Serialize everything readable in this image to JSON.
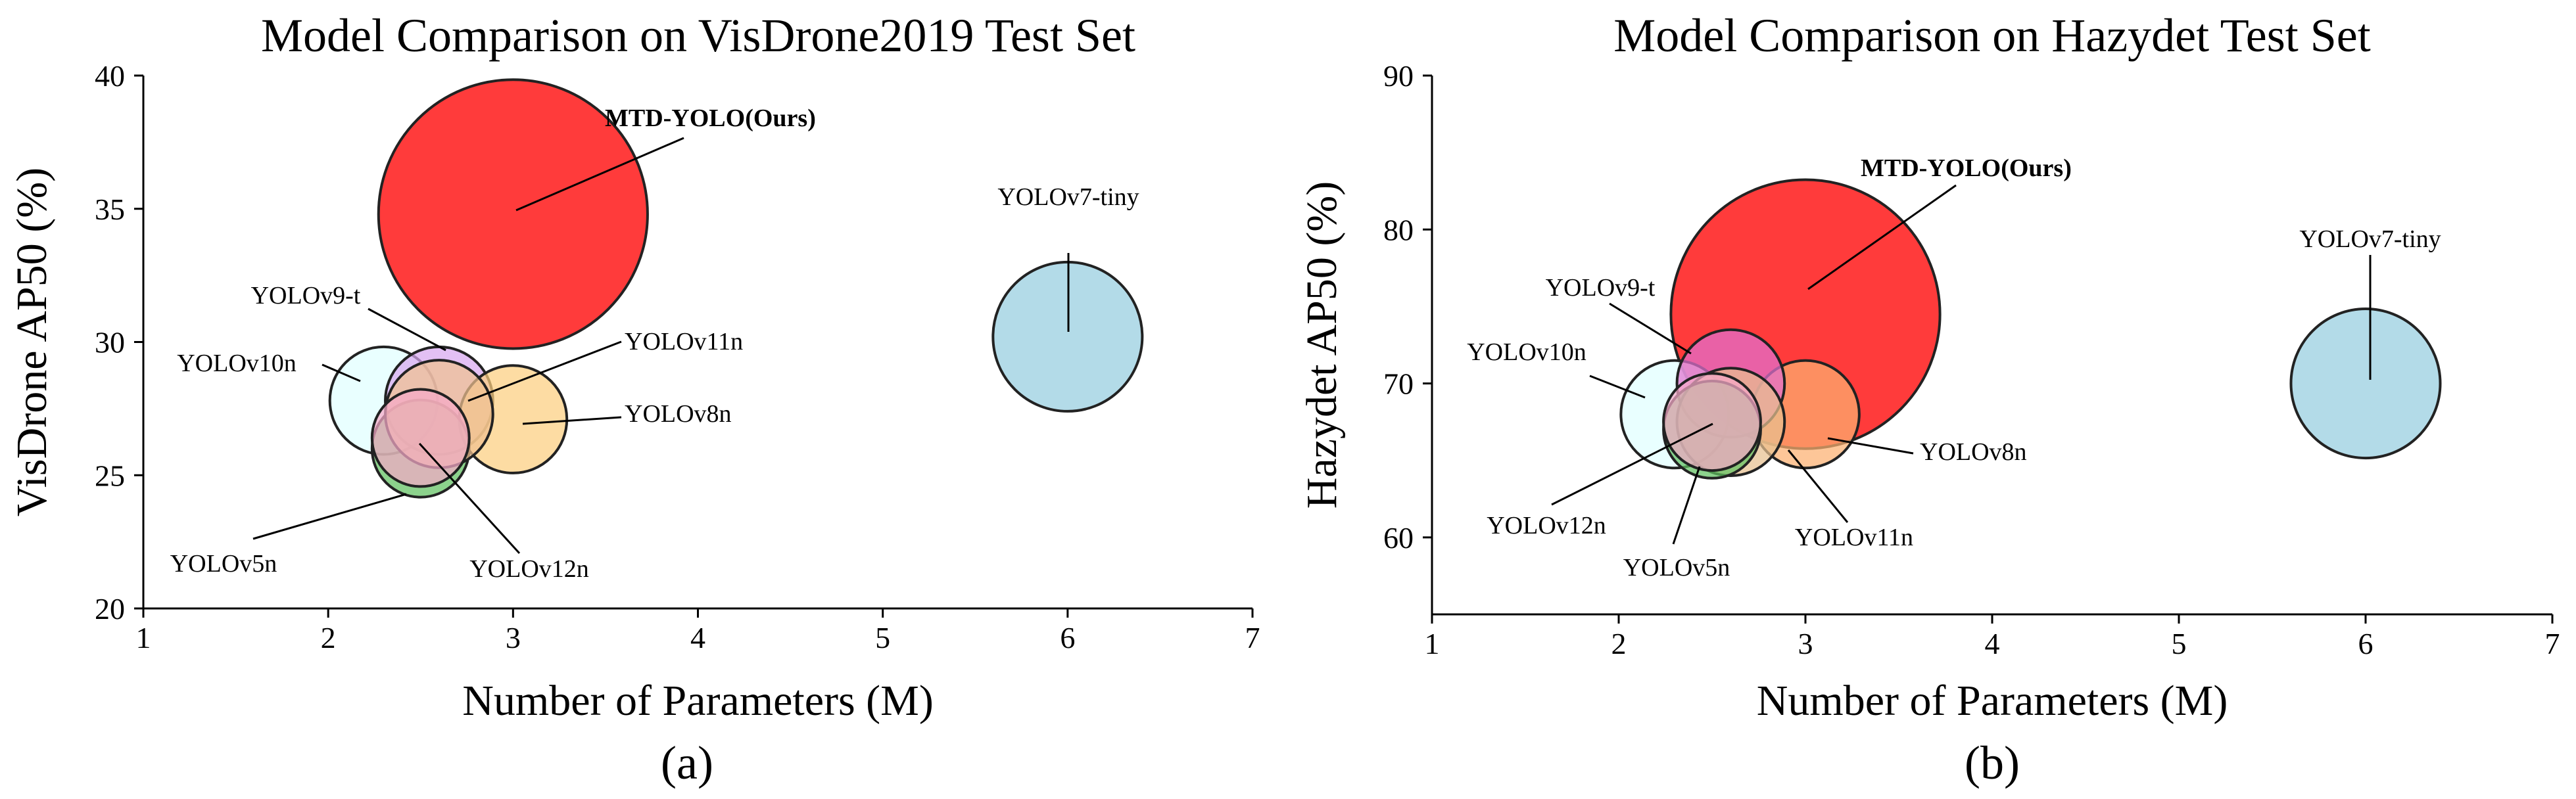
{
  "chart_data": [
    {
      "type": "scatter",
      "caption": "(a)",
      "title": "Model Comparison on VisDrone2019 Test Set",
      "xlabel": "Number of Parameters (M)",
      "ylabel": "VisDrone AP50 (%)",
      "xlim": [
        1,
        7
      ],
      "ylim": [
        20,
        40
      ],
      "xticks": [
        "1",
        "2",
        "3",
        "4",
        "5",
        "6",
        "7"
      ],
      "yticks": [
        "20",
        "25",
        "30",
        "35",
        "40"
      ],
      "points": [
        {
          "name": "MTD-YOLO(Ours)",
          "x": 3.0,
          "y": 34.8,
          "color": "#ff2a2a",
          "bold": true,
          "size": 1.55
        },
        {
          "name": "YOLOv7-tiny",
          "x": 6.0,
          "y": 30.2,
          "color": "#add8e6",
          "bold": false,
          "size": 0.86
        },
        {
          "name": "YOLOv9-t",
          "x": 2.6,
          "y": 27.8,
          "color": "#d8a8f0",
          "bold": false,
          "size": 0.62
        },
        {
          "name": "YOLOv10n",
          "x": 2.3,
          "y": 27.8,
          "color": "#e0ffff",
          "bold": false,
          "size": 0.62
        },
        {
          "name": "YOLOv8n",
          "x": 3.0,
          "y": 27.1,
          "color": "#fccf80",
          "bold": false,
          "size": 0.62
        },
        {
          "name": "YOLOv5n",
          "x": 2.5,
          "y": 26.0,
          "color": "#60c060",
          "bold": false,
          "size": 0.56
        },
        {
          "name": "YOLOv11n",
          "x": 2.6,
          "y": 27.3,
          "color": "#f0c090",
          "bold": false,
          "size": 0.62
        },
        {
          "name": "YOLOv12n",
          "x": 2.5,
          "y": 26.4,
          "color": "#f5a9c8",
          "bold": false,
          "size": 0.56
        }
      ]
    },
    {
      "type": "scatter",
      "caption": "(b)",
      "title": "Model Comparison on Hazydet Test Set",
      "xlabel": "Number of Parameters (M)",
      "ylabel": "Hazydet AP50 (%)",
      "xlim": [
        1,
        7
      ],
      "ylim": [
        55,
        90
      ],
      "xticks": [
        "1",
        "2",
        "3",
        "4",
        "5",
        "6",
        "7"
      ],
      "yticks": [
        "60",
        "70",
        "80",
        "90"
      ],
      "points": [
        {
          "name": "MTD-YOLO(Ours)",
          "x": 3.0,
          "y": 74.5,
          "color": "#ff2a2a",
          "bold": true,
          "size": 1.55
        },
        {
          "name": "YOLOv7-tiny",
          "x": 6.0,
          "y": 70.0,
          "color": "#add8e6",
          "bold": false,
          "size": 0.86
        },
        {
          "name": "YOLOv8n",
          "x": 3.0,
          "y": 68.0,
          "color": "#fcb070",
          "bold": false,
          "size": 0.62
        },
        {
          "name": "YOLOv9-t",
          "x": 2.6,
          "y": 70.0,
          "color": "#e070d0",
          "bold": false,
          "size": 0.62
        },
        {
          "name": "YOLOv10n",
          "x": 2.3,
          "y": 68.0,
          "color": "#e0ffff",
          "bold": false,
          "size": 0.62
        },
        {
          "name": "YOLOv11n",
          "x": 2.6,
          "y": 67.5,
          "color": "#e8c090",
          "bold": false,
          "size": 0.62
        },
        {
          "name": "YOLOv5n",
          "x": 2.5,
          "y": 67.0,
          "color": "#60c060",
          "bold": false,
          "size": 0.56
        },
        {
          "name": "YOLOv12n",
          "x": 2.5,
          "y": 67.5,
          "color": "#f5a9c8",
          "bold": false,
          "size": 0.56
        }
      ]
    }
  ]
}
